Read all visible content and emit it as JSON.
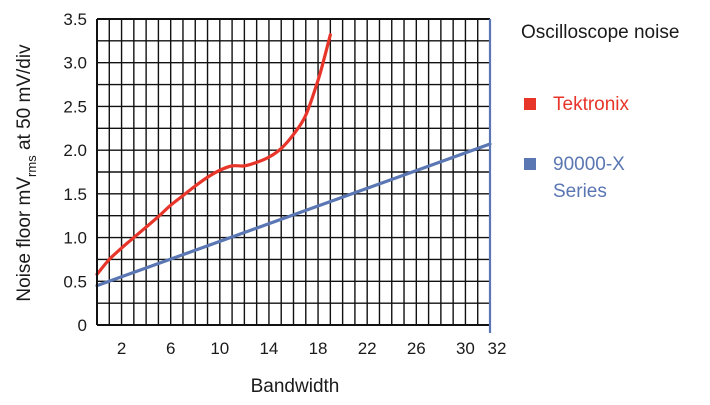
{
  "chart_data": {
    "type": "line",
    "title": "",
    "xlabel": "Bandwidth",
    "ylabel": {
      "main": "Noise floor mV",
      "sub": "rms",
      "suffix": " at 50 mV/div"
    },
    "xlim": [
      0,
      32
    ],
    "ylim": [
      0,
      3.5
    ],
    "x_ticks": [
      2,
      6,
      10,
      14,
      18,
      22,
      26,
      30,
      32
    ],
    "x_tick_highlight": 32,
    "x_tick_highlight_color": "#5a76b3",
    "y_ticks": [
      "0",
      "0.5",
      "1.0",
      "1.5",
      "2.0",
      "2.5",
      "3.0",
      "3.5"
    ],
    "grid": true,
    "legend": {
      "title": "Oscilloscope noise",
      "placement": "right"
    },
    "series": [
      {
        "name": "Tektronix",
        "color": "#e8352a",
        "x": [
          0,
          1,
          2,
          3,
          4,
          5,
          6,
          7,
          8,
          9,
          10,
          11,
          12,
          13,
          14,
          15,
          16,
          17,
          18,
          18.5,
          19
        ],
        "y": [
          0.58,
          0.75,
          0.88,
          1.0,
          1.12,
          1.24,
          1.37,
          1.48,
          1.59,
          1.69,
          1.77,
          1.82,
          1.82,
          1.86,
          1.92,
          2.02,
          2.18,
          2.4,
          2.8,
          3.05,
          3.32
        ]
      },
      {
        "name": "90000-X\nSeries",
        "color": "#5a76b3",
        "x": [
          0,
          32
        ],
        "y": [
          0.45,
          2.07
        ]
      }
    ]
  }
}
